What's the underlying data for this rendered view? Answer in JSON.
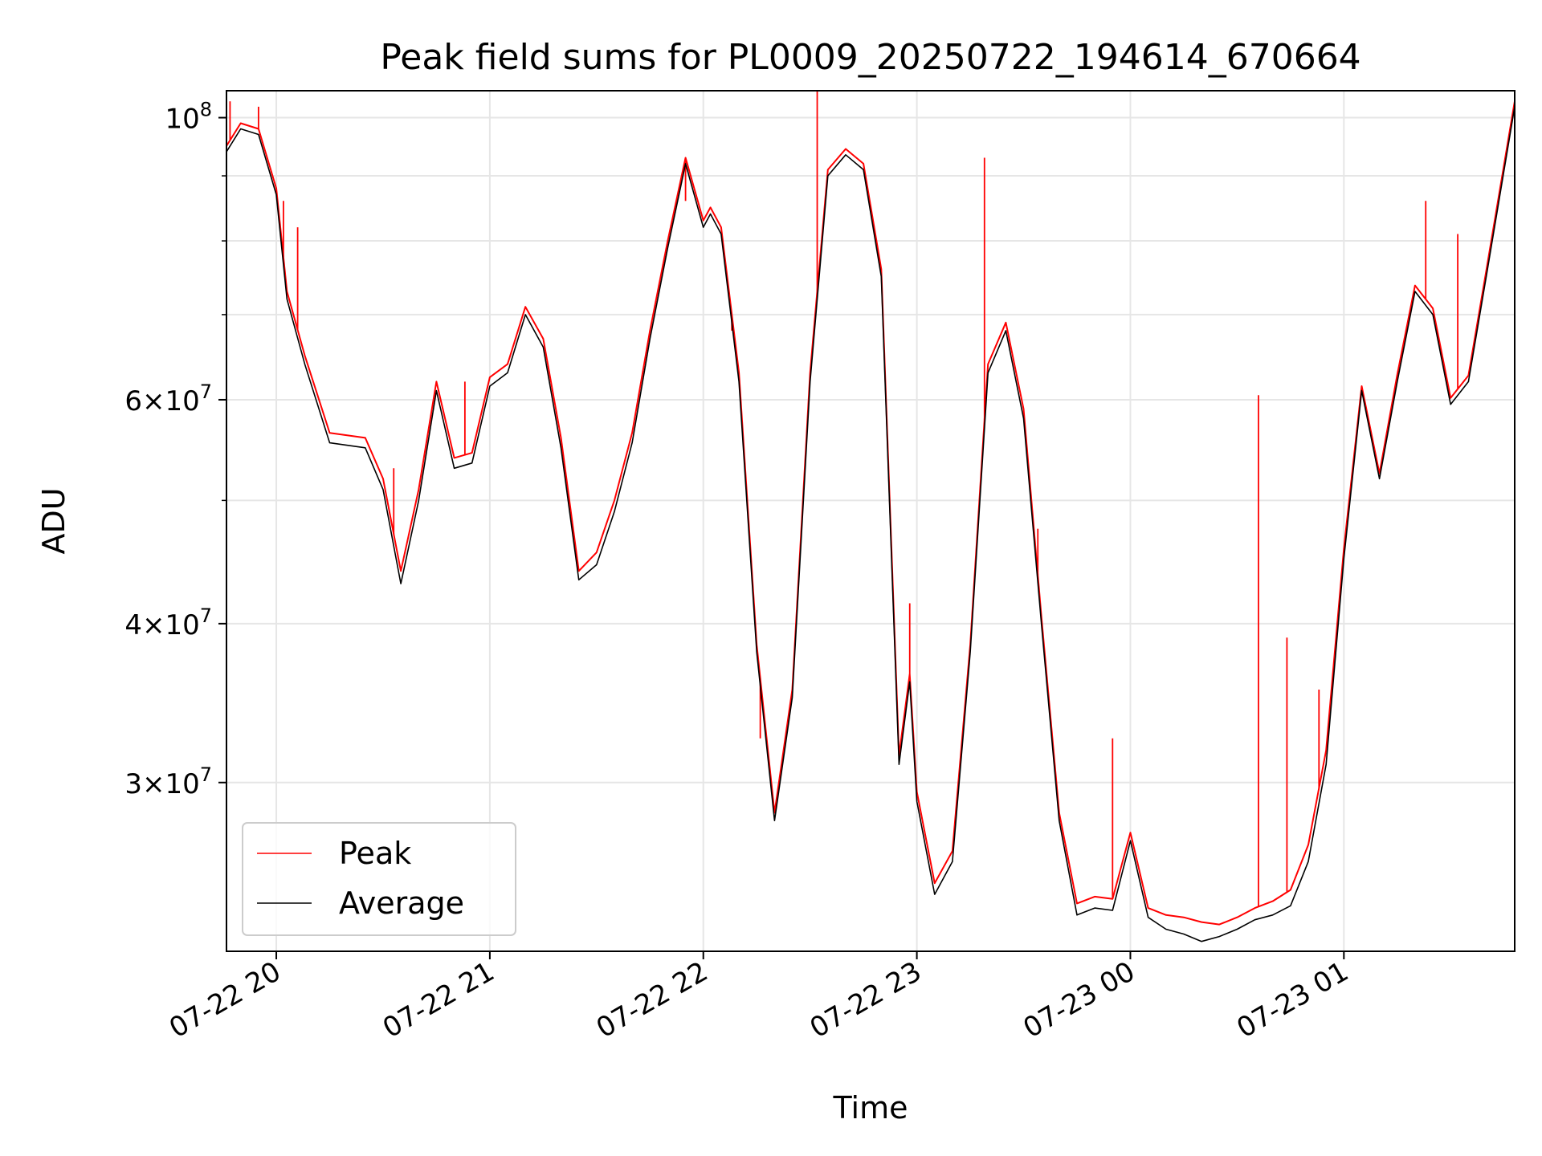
{
  "chart_data": {
    "type": "line",
    "title": "Peak field sums for PL0009_20250722_194614_670664",
    "xlabel": "Time",
    "ylabel": "ADU",
    "y_scale": "log",
    "ylim": [
      22100000,
      105000000
    ],
    "xlim": [
      "2025-07-22 19:46",
      "2025-07-23 01:48"
    ],
    "grid": true,
    "legend_position": "lower-left",
    "x_ticks": [
      {
        "t": "2025-07-22 20:00",
        "label": "07-22 20"
      },
      {
        "t": "2025-07-22 21:00",
        "label": "07-22 21"
      },
      {
        "t": "2025-07-22 22:00",
        "label": "07-22 22"
      },
      {
        "t": "2025-07-22 23:00",
        "label": "07-22 23"
      },
      {
        "t": "2025-07-23 00:00",
        "label": "07-23 00"
      },
      {
        "t": "2025-07-23 01:00",
        "label": "07-23 01"
      }
    ],
    "y_ticks": [
      {
        "value": 30000000,
        "mantissa": "3",
        "exponent": "7"
      },
      {
        "value": 40000000,
        "mantissa": "4",
        "exponent": "7"
      },
      {
        "value": 60000000,
        "mantissa": "6",
        "exponent": "7"
      },
      {
        "value": 100000000,
        "mantissa": "",
        "exponent": "8"
      }
    ],
    "y_minor_ticks": [
      50000000,
      70000000,
      80000000,
      90000000
    ],
    "series": [
      {
        "name": "Average",
        "color": "#000000",
        "points": [
          [
            "2025-07-22 19:46",
            94000000
          ],
          [
            "2025-07-22 19:50",
            98000000
          ],
          [
            "2025-07-22 19:55",
            97000000
          ],
          [
            "2025-07-22 20:00",
            87000000
          ],
          [
            "2025-07-22 20:03",
            72000000
          ],
          [
            "2025-07-22 20:08",
            64000000
          ],
          [
            "2025-07-22 20:15",
            55500000
          ],
          [
            "2025-07-22 20:25",
            55000000
          ],
          [
            "2025-07-22 20:30",
            51000000
          ],
          [
            "2025-07-22 20:35",
            43000000
          ],
          [
            "2025-07-22 20:40",
            50000000
          ],
          [
            "2025-07-22 20:45",
            61000000
          ],
          [
            "2025-07-22 20:50",
            53000000
          ],
          [
            "2025-07-22 20:55",
            53500000
          ],
          [
            "2025-07-22 21:00",
            61500000
          ],
          [
            "2025-07-22 21:05",
            63000000
          ],
          [
            "2025-07-22 21:10",
            70000000
          ],
          [
            "2025-07-22 21:15",
            66000000
          ],
          [
            "2025-07-22 21:20",
            55000000
          ],
          [
            "2025-07-22 21:25",
            43300000
          ],
          [
            "2025-07-22 21:30",
            44500000
          ],
          [
            "2025-07-22 21:35",
            49000000
          ],
          [
            "2025-07-22 21:40",
            55500000
          ],
          [
            "2025-07-22 21:45",
            67000000
          ],
          [
            "2025-07-22 21:50",
            79000000
          ],
          [
            "2025-07-22 21:55",
            92000000
          ],
          [
            "2025-07-22 22:00",
            82000000
          ],
          [
            "2025-07-22 22:02",
            84000000
          ],
          [
            "2025-07-22 22:05",
            81000000
          ],
          [
            "2025-07-22 22:10",
            62000000
          ],
          [
            "2025-07-22 22:15",
            38000000
          ],
          [
            "2025-07-22 22:20",
            28000000
          ],
          [
            "2025-07-22 22:25",
            35000000
          ],
          [
            "2025-07-22 22:30",
            62000000
          ],
          [
            "2025-07-22 22:35",
            90000000
          ],
          [
            "2025-07-22 22:40",
            93500000
          ],
          [
            "2025-07-22 22:45",
            91000000
          ],
          [
            "2025-07-22 22:50",
            75000000
          ],
          [
            "2025-07-22 22:55",
            31000000
          ],
          [
            "2025-07-22 22:58",
            36000000
          ],
          [
            "2025-07-22 23:00",
            29000000
          ],
          [
            "2025-07-22 23:05",
            24500000
          ],
          [
            "2025-07-22 23:10",
            26000000
          ],
          [
            "2025-07-22 23:15",
            38000000
          ],
          [
            "2025-07-22 23:20",
            63000000
          ],
          [
            "2025-07-22 23:25",
            68000000
          ],
          [
            "2025-07-22 23:30",
            58000000
          ],
          [
            "2025-07-22 23:35",
            40000000
          ],
          [
            "2025-07-22 23:40",
            28000000
          ],
          [
            "2025-07-22 23:45",
            23600000
          ],
          [
            "2025-07-22 23:50",
            23900000
          ],
          [
            "2025-07-22 23:55",
            23800000
          ],
          [
            "2025-07-23 00:00",
            27000000
          ],
          [
            "2025-07-23 00:05",
            23500000
          ],
          [
            "2025-07-23 00:10",
            23000000
          ],
          [
            "2025-07-23 00:15",
            22800000
          ],
          [
            "2025-07-23 00:20",
            22500000
          ],
          [
            "2025-07-23 00:25",
            22700000
          ],
          [
            "2025-07-23 00:30",
            23000000
          ],
          [
            "2025-07-23 00:35",
            23400000
          ],
          [
            "2025-07-23 00:40",
            23600000
          ],
          [
            "2025-07-23 00:45",
            24000000
          ],
          [
            "2025-07-23 00:50",
            26000000
          ],
          [
            "2025-07-23 00:55",
            31000000
          ],
          [
            "2025-07-23 01:00",
            45000000
          ],
          [
            "2025-07-23 01:05",
            61000000
          ],
          [
            "2025-07-23 01:10",
            52000000
          ],
          [
            "2025-07-23 01:15",
            62000000
          ],
          [
            "2025-07-23 01:20",
            73000000
          ],
          [
            "2025-07-23 01:25",
            70000000
          ],
          [
            "2025-07-23 01:30",
            59500000
          ],
          [
            "2025-07-23 01:35",
            62000000
          ],
          [
            "2025-07-23 01:40",
            75000000
          ],
          [
            "2025-07-23 01:48",
            102000000
          ]
        ]
      },
      {
        "name": "Peak",
        "color": "#ff0000",
        "points": [
          [
            "2025-07-22 19:46",
            95000000
          ],
          [
            "2025-07-22 19:50",
            99000000
          ],
          [
            "2025-07-22 19:55",
            98000000
          ],
          [
            "2025-07-22 20:00",
            88000000
          ],
          [
            "2025-07-22 20:03",
            73000000
          ],
          [
            "2025-07-22 20:08",
            65000000
          ],
          [
            "2025-07-22 20:15",
            56500000
          ],
          [
            "2025-07-22 20:25",
            56000000
          ],
          [
            "2025-07-22 20:30",
            52000000
          ],
          [
            "2025-07-22 20:35",
            44000000
          ],
          [
            "2025-07-22 20:40",
            51000000
          ],
          [
            "2025-07-22 20:45",
            62000000
          ],
          [
            "2025-07-22 20:50",
            54000000
          ],
          [
            "2025-07-22 20:55",
            54500000
          ],
          [
            "2025-07-22 21:00",
            62500000
          ],
          [
            "2025-07-22 21:05",
            64000000
          ],
          [
            "2025-07-22 21:10",
            71000000
          ],
          [
            "2025-07-22 21:15",
            67000000
          ],
          [
            "2025-07-22 21:20",
            56000000
          ],
          [
            "2025-07-22 21:25",
            44000000
          ],
          [
            "2025-07-22 21:30",
            45500000
          ],
          [
            "2025-07-22 21:35",
            50000000
          ],
          [
            "2025-07-22 21:40",
            56500000
          ],
          [
            "2025-07-22 21:45",
            68000000
          ],
          [
            "2025-07-22 21:50",
            80000000
          ],
          [
            "2025-07-22 21:55",
            93000000
          ],
          [
            "2025-07-22 22:00",
            83000000
          ],
          [
            "2025-07-22 22:02",
            85000000
          ],
          [
            "2025-07-22 22:05",
            82000000
          ],
          [
            "2025-07-22 22:10",
            63000000
          ],
          [
            "2025-07-22 22:15",
            38500000
          ],
          [
            "2025-07-22 22:20",
            28400000
          ],
          [
            "2025-07-22 22:25",
            35500000
          ],
          [
            "2025-07-22 22:30",
            63000000
          ],
          [
            "2025-07-22 22:35",
            91000000
          ],
          [
            "2025-07-22 22:40",
            94500000
          ],
          [
            "2025-07-22 22:45",
            92000000
          ],
          [
            "2025-07-22 22:50",
            76000000
          ],
          [
            "2025-07-22 22:55",
            31500000
          ],
          [
            "2025-07-22 22:58",
            36500000
          ],
          [
            "2025-07-22 23:00",
            29500000
          ],
          [
            "2025-07-22 23:05",
            25000000
          ],
          [
            "2025-07-22 23:10",
            26500000
          ],
          [
            "2025-07-22 23:15",
            38500000
          ],
          [
            "2025-07-22 23:20",
            64000000
          ],
          [
            "2025-07-22 23:25",
            69000000
          ],
          [
            "2025-07-22 23:30",
            59000000
          ],
          [
            "2025-07-22 23:35",
            40500000
          ],
          [
            "2025-07-22 23:40",
            28400000
          ],
          [
            "2025-07-22 23:45",
            24100000
          ],
          [
            "2025-07-22 23:50",
            24400000
          ],
          [
            "2025-07-22 23:55",
            24300000
          ],
          [
            "2025-07-23 00:00",
            27400000
          ],
          [
            "2025-07-23 00:05",
            23900000
          ],
          [
            "2025-07-23 00:10",
            23600000
          ],
          [
            "2025-07-23 00:15",
            23500000
          ],
          [
            "2025-07-23 00:20",
            23300000
          ],
          [
            "2025-07-23 00:25",
            23200000
          ],
          [
            "2025-07-23 00:30",
            23500000
          ],
          [
            "2025-07-23 00:35",
            23900000
          ],
          [
            "2025-07-23 00:40",
            24200000
          ],
          [
            "2025-07-23 00:45",
            24700000
          ],
          [
            "2025-07-23 00:50",
            26800000
          ],
          [
            "2025-07-23 00:55",
            31800000
          ],
          [
            "2025-07-23 01:00",
            45800000
          ],
          [
            "2025-07-23 01:05",
            61500000
          ],
          [
            "2025-07-23 01:10",
            52500000
          ],
          [
            "2025-07-23 01:15",
            62800000
          ],
          [
            "2025-07-23 01:20",
            73800000
          ],
          [
            "2025-07-23 01:25",
            70800000
          ],
          [
            "2025-07-23 01:30",
            60200000
          ],
          [
            "2025-07-23 01:35",
            62700000
          ],
          [
            "2025-07-23 01:40",
            75800000
          ],
          [
            "2025-07-23 01:48",
            103000000
          ]
        ],
        "spikes": [
          [
            "2025-07-22 19:47",
            103000000
          ],
          [
            "2025-07-22 19:55",
            102000000
          ],
          [
            "2025-07-22 20:02",
            86000000
          ],
          [
            "2025-07-22 20:06",
            82000000
          ],
          [
            "2025-07-22 20:33",
            53000000
          ],
          [
            "2025-07-22 20:53",
            62000000
          ],
          [
            "2025-07-22 21:55",
            86000000
          ],
          [
            "2025-07-22 22:08",
            68000000
          ],
          [
            "2025-07-22 22:16",
            32500000
          ],
          [
            "2025-07-22 22:32",
            105000000
          ],
          [
            "2025-07-22 22:58",
            41500000
          ],
          [
            "2025-07-22 23:19",
            93000000
          ],
          [
            "2025-07-22 23:34",
            47500000
          ],
          [
            "2025-07-22 23:55",
            32500000
          ],
          [
            "2025-07-23 00:36",
            60500000
          ],
          [
            "2025-07-23 00:44",
            39000000
          ],
          [
            "2025-07-23 00:53",
            35500000
          ],
          [
            "2025-07-23 01:23",
            86000000
          ],
          [
            "2025-07-23 01:32",
            81000000
          ]
        ]
      }
    ],
    "legend": [
      "Peak",
      "Average"
    ]
  }
}
